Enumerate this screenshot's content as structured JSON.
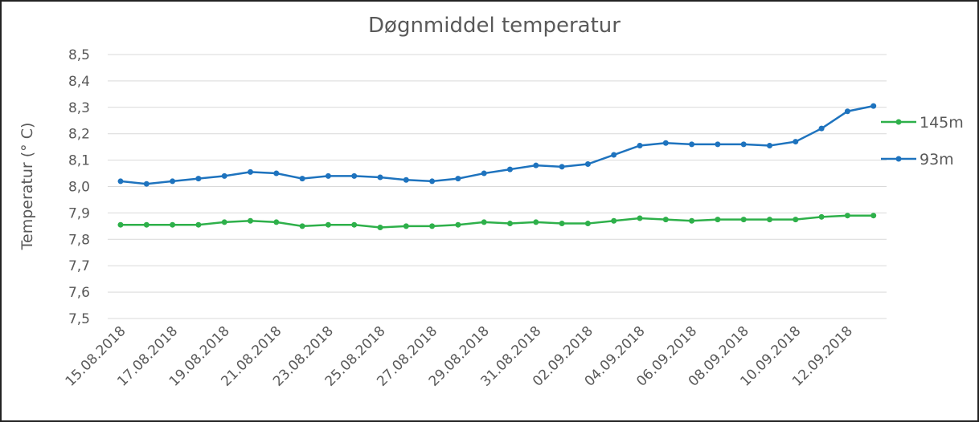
{
  "chart_data": {
    "type": "line",
    "title": "Døgnmiddel temperatur",
    "y_label": "Temperatur (° C)",
    "categories": [
      "15.08.2018",
      null,
      "17.08.2018",
      null,
      "19.08.2018",
      null,
      "21.08.2018",
      null,
      "23.08.2018",
      null,
      "25.08.2018",
      null,
      "27.08.2018",
      null,
      "29.08.2018",
      null,
      "31.08.2018",
      null,
      "02.09.2018",
      null,
      "04.09.2018",
      null,
      "06.09.2018",
      null,
      "08.09.2018",
      null,
      "10.09.2018",
      null,
      "12.09.2018",
      null
    ],
    "series": [
      {
        "name": "145m",
        "color": "#2eb04a",
        "values": [
          7.855,
          7.855,
          7.855,
          7.855,
          7.865,
          7.87,
          7.865,
          7.85,
          7.855,
          7.855,
          7.845,
          7.85,
          7.85,
          7.855,
          7.865,
          7.86,
          7.865,
          7.86,
          7.86,
          7.87,
          7.88,
          7.875,
          7.87,
          7.875,
          7.875,
          7.875,
          7.875,
          7.885,
          7.89,
          7.89
        ]
      },
      {
        "name": "93m",
        "color": "#1e73be",
        "values": [
          8.02,
          8.01,
          8.02,
          8.03,
          8.04,
          8.055,
          8.05,
          8.03,
          8.04,
          8.04,
          8.035,
          8.025,
          8.02,
          8.03,
          8.05,
          8.065,
          8.08,
          8.075,
          8.085,
          8.12,
          8.155,
          8.165,
          8.16,
          8.16,
          8.16,
          8.155,
          8.17,
          8.22,
          8.285,
          8.305
        ]
      }
    ],
    "ylim": [
      7.5,
      8.5
    ],
    "yticks": [
      {
        "value": 7.5,
        "label": "7,5"
      },
      {
        "value": 7.6,
        "label": "7,6"
      },
      {
        "value": 7.7,
        "label": "7,7"
      },
      {
        "value": 7.8,
        "label": "7,8"
      },
      {
        "value": 7.9,
        "label": "7,9"
      },
      {
        "value": 8.0,
        "label": "8,0"
      },
      {
        "value": 8.1,
        "label": "8,1"
      },
      {
        "value": 8.2,
        "label": "8,2"
      },
      {
        "value": 8.3,
        "label": "8,3"
      },
      {
        "value": 8.4,
        "label": "8,4"
      },
      {
        "value": 8.5,
        "label": "8,5"
      }
    ],
    "grid": true,
    "legend": "right"
  }
}
